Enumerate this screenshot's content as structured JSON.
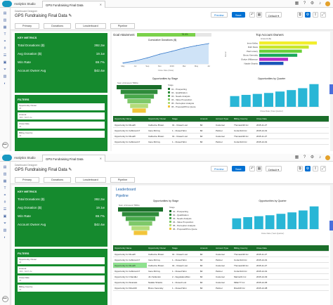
{
  "app": {
    "name": "Analytics Studio",
    "tab_title": "GPS Fundraising Final Data"
  },
  "header": {
    "breadcrumb": "Dashboard Designer",
    "title": "GPS Fundraising Final Data",
    "preview": "Preview",
    "save": "Save",
    "layout": "Default"
  },
  "nav_tabs": [
    "Primary",
    "Donations",
    "Leaderboard",
    "Pipeline"
  ],
  "metrics": {
    "title": "KEY METRICS",
    "rows": [
      {
        "label": "Total Donations ($)",
        "value": "392.2w"
      },
      {
        "label": "Avg Donation ($)",
        "value": "19.1w"
      },
      {
        "label": "Win Rate",
        "value": "69.7%"
      },
      {
        "label": "Account Owner Avg",
        "value": "$42.4w"
      }
    ]
  },
  "filters": {
    "title": "FILTERS",
    "items": [
      {
        "label": "Opportunity Owner",
        "value": "All"
      },
      {
        "label": "Amount",
        "value": "-$60 - $237.2w"
      },
      {
        "label": "Close Date",
        "value": "All"
      },
      {
        "label": "Billing Country",
        "value": "All"
      }
    ]
  },
  "panels": {
    "goal_title": "Goal Attainment",
    "goal_value": "78.4%",
    "cumulative_title": "Cumulative Donations ($)",
    "cumulative_xlabel": "Close Date (Date)",
    "top_owners_title": "Top Account Owners",
    "top_owners_col": "Amount ($)",
    "top_owners_ylabel": "Owner",
    "opp_stage_title": "Opportunities by Stage",
    "sum_label": "Sum of Amount  TRRw",
    "stage_legend_title": "Stage",
    "opp_quarter_title": "Opportunities by Quarter",
    "quarter_xlabel": "Close Date (Year-Quarter)",
    "leaderboard": "Leaderboard",
    "pipeline": "Pipeline"
  },
  "chart_data": [
    {
      "type": "line",
      "title": "Cumulative Donations ($)",
      "xlabel": "Close Date (Date)",
      "ylabel": "",
      "x": [
        "May",
        "Jul",
        "Sep",
        "Nov",
        "2016",
        "Mar",
        "May",
        "Jul"
      ],
      "values": [
        0.05,
        0.15,
        0.3,
        0.48,
        0.62,
        0.78,
        0.9,
        1.0
      ],
      "ylim": [
        0,
        1
      ]
    },
    {
      "type": "bar",
      "title": "Top Account Owners",
      "ylabel": "Owner",
      "categories": [
        "Irene Kelley",
        "Ruth Davis",
        "Paul Lowery",
        "Bruno Kerensky",
        "Evelyn Williamson",
        "Natalie Shanks"
      ],
      "values": [
        100,
        86,
        74,
        66,
        50,
        42
      ],
      "colors": [
        "#f2ee2c",
        "#c8e62c",
        "#6ad03a",
        "#19a85a",
        "#b02cc8",
        "#1a55b8"
      ]
    },
    {
      "type": "bar",
      "title": "Opportunities by Quarter",
      "xlabel": "Close Date (Year-Quarter)",
      "categories": [
        "Q1",
        "Q2",
        "Q3",
        "Q4",
        "Q5",
        "Q6",
        "Q7",
        "Q8"
      ],
      "values": [
        45,
        50,
        54,
        58,
        64,
        70,
        78,
        95
      ]
    },
    {
      "type": "bar",
      "title": "Opportunities by Stage",
      "categories": [
        "01 - Prospecting",
        "02 - Qualification",
        "03 - Needs Analysis",
        "04 - Value Proposition",
        "05 - Perception Analysis",
        "06 - Proposal/Price Quote"
      ],
      "values": [
        100,
        82,
        66,
        52,
        40,
        30
      ],
      "colors": [
        "#1a6e2a",
        "#2e8b3a",
        "#48a84a",
        "#7fc96a",
        "#b3dc7a",
        "#f2c53a"
      ]
    }
  ],
  "table": {
    "headers": [
      "Opportunity Name",
      "Opportunity Owner",
      "Stage",
      "Amount",
      "Account Type",
      "Billing Country",
      "Close Date"
    ],
    "rows": [
      [
        "Opportunity for Moodfl",
        "Catherine Brown",
        "01 - Closed Lost",
        "$0",
        "Customer",
        "Thomas130 Inc",
        "2015-11-27"
      ],
      [
        "Opportunity for Jefferson17",
        "Irene McCoy",
        "1 - Closed Won",
        "$0",
        "Partner",
        "Cortez124 Inc",
        "2015-12-01"
      ],
      [
        "Opportunity for Moodfl",
        "Catherine Brown",
        "01 - Closed Lost",
        "$0",
        "Customer",
        "Thomas130 Inc",
        "2015-11-27"
      ],
      [
        "Opportunity for Jefferson17",
        "Irene McCoy",
        "1 - Closed Won",
        "$0",
        "Partner",
        "Cortez124 Inc",
        "2015-12-01"
      ],
      [
        "Opportunity for Chandler",
        "Jim Sollenski",
        "2 - Negotiation/Rev",
        "$0",
        "Customer",
        "Marino01 Inc",
        "2015-12-03"
      ],
      [
        "Opportunity for Alvarado",
        "Natalie Shanks",
        "1 - Closed Lost",
        "$0",
        "Customer",
        "Miller77 Inc",
        "2015-12-05"
      ],
      [
        "Opportunity for Rice100",
        "Bruno Kerensky",
        "1 - Closed Won",
        "$0",
        "Partner",
        "Rice100 Inc",
        "2015-12-08"
      ]
    ]
  },
  "colors": {
    "accent": "#0070d2",
    "metric_green": "#158a2e",
    "table_head": "#1b6e2a",
    "highlight": "#8fe28f",
    "callout": "#dd3333"
  }
}
